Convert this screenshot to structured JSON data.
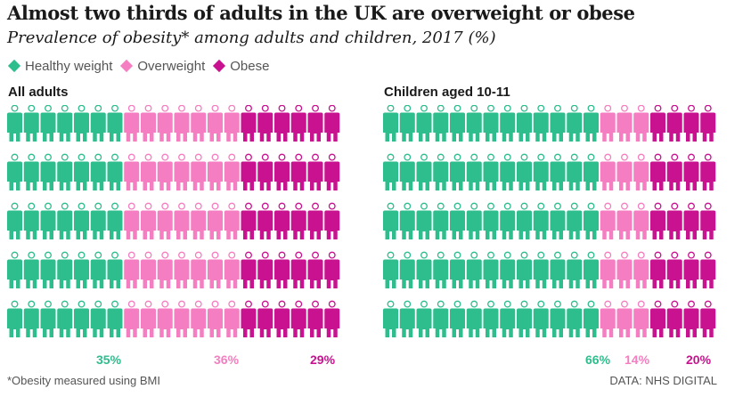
{
  "title": "Almost two thirds of adults in the UK are overweight or obese",
  "subtitle": "Prevalence of obesity* among adults and children, 2017 (%)",
  "legend": [
    {
      "label": "Healthy weight",
      "color": "#2ebd8c"
    },
    {
      "label": "Overweight",
      "color": "#f47ec1"
    },
    {
      "label": "Obese",
      "color": "#c8128f"
    }
  ],
  "chart_data": [
    {
      "type": "pictogram",
      "title": "All adults",
      "categories": [
        "Healthy weight",
        "Overweight",
        "Obese"
      ],
      "values": [
        35,
        36,
        29
      ],
      "value_labels": [
        "35%",
        "36%",
        "29%"
      ],
      "colors": [
        "#2ebd8c",
        "#f47ec1",
        "#c8128f"
      ],
      "grid": {
        "rows": 5,
        "cols": 20
      }
    },
    {
      "type": "pictogram",
      "title": "Children aged 10-11",
      "categories": [
        "Healthy weight",
        "Overweight",
        "Obese"
      ],
      "values": [
        66,
        14,
        20
      ],
      "value_labels": [
        "66%",
        "14%",
        "20%"
      ],
      "colors": [
        "#2ebd8c",
        "#f47ec1",
        "#c8128f"
      ],
      "grid": {
        "rows": 5,
        "cols": 20
      }
    }
  ],
  "footnote": "*Obesity measured using BMI",
  "source": "DATA: NHS DIGITAL"
}
